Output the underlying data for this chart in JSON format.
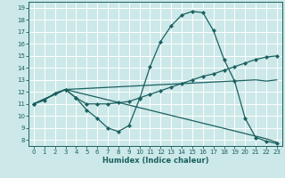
{
  "bg_color": "#cce8e8",
  "grid_color": "#ffffff",
  "line_color": "#1a6060",
  "xlabel": "Humidex (Indice chaleur)",
  "xlim": [
    -0.5,
    23.5
  ],
  "ylim": [
    7.5,
    19.5
  ],
  "yticks": [
    8,
    9,
    10,
    11,
    12,
    13,
    14,
    15,
    16,
    17,
    18,
    19
  ],
  "xticks": [
    0,
    1,
    2,
    3,
    4,
    5,
    6,
    7,
    8,
    9,
    10,
    11,
    12,
    13,
    14,
    15,
    16,
    17,
    18,
    19,
    20,
    21,
    22,
    23
  ],
  "lines": [
    {
      "x": [
        0,
        1,
        2,
        3,
        4,
        5,
        6,
        7,
        8,
        9,
        10,
        11,
        12,
        13,
        14,
        15,
        16,
        17,
        18,
        19,
        20,
        21,
        22,
        23
      ],
      "y": [
        11,
        11.3,
        11.9,
        12.2,
        11.5,
        10.5,
        9.8,
        9.0,
        8.7,
        9.2,
        11.4,
        14.1,
        16.2,
        17.5,
        18.4,
        18.7,
        18.6,
        17.1,
        14.7,
        12.9,
        9.8,
        8.2,
        7.9,
        7.7
      ],
      "marker": true
    },
    {
      "x": [
        0,
        3,
        4,
        5,
        6,
        7,
        8,
        9,
        10,
        11,
        12,
        13,
        14,
        15,
        16,
        17,
        18,
        19,
        20,
        21,
        22,
        23
      ],
      "y": [
        11,
        12.2,
        11.5,
        11.0,
        11.0,
        11.0,
        11.1,
        11.2,
        11.5,
        11.8,
        12.1,
        12.4,
        12.7,
        13.0,
        13.3,
        13.5,
        13.8,
        14.1,
        14.4,
        14.7,
        14.9,
        15.0
      ],
      "marker": true
    },
    {
      "x": [
        0,
        3,
        22,
        23
      ],
      "y": [
        11,
        12.2,
        8.1,
        7.8
      ],
      "marker": false
    },
    {
      "x": [
        0,
        3,
        21,
        22,
        23
      ],
      "y": [
        11,
        12.2,
        13.0,
        12.9,
        13.0
      ],
      "marker": false
    }
  ]
}
